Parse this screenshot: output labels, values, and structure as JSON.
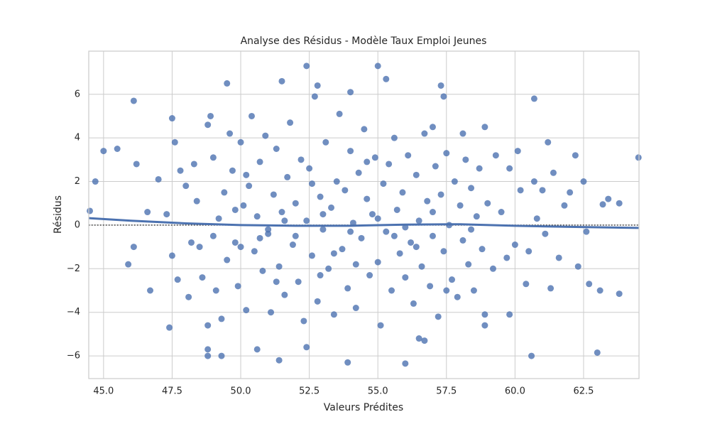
{
  "chart_data": {
    "type": "residplot",
    "title": "Analyse des Résidus - Modèle Taux Emploi Jeunes",
    "xlabel": "Valeurs Prédites",
    "ylabel": "Résidus",
    "xlim": [
      44.46,
      64.52
    ],
    "ylim": [
      -7.04,
      7.98
    ],
    "xticks": [
      {
        "value": 45,
        "label": "45.0"
      },
      {
        "value": 47.5,
        "label": "47.5"
      },
      {
        "value": 50,
        "label": "50.0"
      },
      {
        "value": 52.5,
        "label": "52.5"
      },
      {
        "value": 55,
        "label": "55.0"
      },
      {
        "value": 57.5,
        "label": "57.5"
      },
      {
        "value": 60,
        "label": "60.0"
      },
      {
        "value": 62.5,
        "label": "62.5"
      }
    ],
    "yticks": [
      {
        "value": -6,
        "label": "−6"
      },
      {
        "value": -4,
        "label": "−4"
      },
      {
        "value": -2,
        "label": "−2"
      },
      0,
      2,
      4,
      6
    ],
    "grid": true,
    "hline": 0,
    "series": [
      {
        "type": "scatter",
        "color": "#4c72b0",
        "x": [
          44.5,
          44.7,
          45.0,
          45.5,
          46.1,
          45.9,
          46.1,
          46.2,
          46.6,
          46.7,
          47.0,
          47.4,
          47.5,
          47.6,
          49.5,
          52.4,
          55.0,
          55.3,
          51.5,
          52.8,
          54.0,
          57.3,
          57.4,
          60.7,
          60.6,
          63.0,
          63.2,
          63.4,
          63.8,
          64.5,
          63.8,
          63.1,
          62.7,
          62.5,
          62.2,
          62.6,
          48.8,
          49.3,
          48.8,
          51.4,
          53.9,
          56.0,
          56.5,
          56.7,
          52.4,
          50.6,
          48.8,
          61.2,
          58.9,
          57.0,
          58.1,
          59.8,
          58.9,
          58.9,
          47.3,
          47.5,
          47.7,
          47.8,
          48.0,
          48.1,
          48.3,
          48.4,
          48.5,
          48.6,
          48.8,
          48.9,
          49.0,
          49.1,
          49.2,
          49.3,
          49.4,
          49.5,
          49.6,
          49.7,
          49.8,
          49.9,
          50.0,
          50.1,
          50.2,
          50.3,
          50.4,
          50.5,
          50.6,
          50.7,
          50.8,
          50.9,
          51.0,
          51.1,
          51.2,
          51.3,
          51.4,
          51.5,
          51.6,
          51.7,
          51.8,
          51.9,
          52.0,
          52.1,
          52.2,
          52.3,
          52.4,
          52.5,
          52.6,
          52.7,
          52.8,
          52.9,
          53.0,
          53.1,
          53.2,
          53.3,
          53.4,
          53.5,
          53.6,
          53.7,
          53.8,
          53.9,
          54.0,
          54.1,
          54.2,
          54.3,
          54.4,
          54.5,
          54.6,
          54.7,
          54.8,
          54.9,
          55.0,
          55.1,
          55.2,
          55.3,
          55.4,
          55.5,
          55.6,
          55.7,
          55.8,
          55.9,
          56.0,
          56.1,
          56.2,
          56.3,
          56.4,
          56.5,
          56.6,
          56.7,
          56.8,
          56.9,
          57.0,
          57.1,
          57.2,
          57.3,
          57.4,
          57.5,
          57.6,
          57.7,
          57.8,
          57.9,
          58.0,
          58.1,
          58.2,
          58.3,
          58.4,
          58.5,
          58.6,
          58.7,
          58.8,
          59.0,
          59.2,
          59.3,
          59.5,
          59.7,
          59.8,
          60.0,
          60.1,
          60.2,
          60.4,
          60.5,
          60.7,
          60.8,
          61.0,
          61.1,
          61.3,
          61.4,
          61.6,
          61.8,
          62.0,
          62.3,
          49.0,
          50.0,
          51.0,
          52.0,
          53.0,
          54.0,
          55.0,
          56.0,
          57.0,
          48.2,
          49.8,
          50.7,
          51.6,
          52.6,
          53.4,
          54.6,
          55.6,
          56.4,
          57.5,
          58.4,
          50.2,
          51.3,
          52.9,
          54.2
        ],
        "values": [
          0.65,
          2.0,
          3.4,
          3.5,
          5.7,
          -1.8,
          -1.0,
          2.8,
          0.6,
          -3.0,
          2.1,
          -4.7,
          4.9,
          3.8,
          6.5,
          7.3,
          7.3,
          6.7,
          6.6,
          6.4,
          6.1,
          6.4,
          5.9,
          5.8,
          -6.0,
          -5.85,
          0.95,
          1.2,
          1.0,
          3.1,
          -3.15,
          -3.0,
          -2.7,
          2.0,
          3.2,
          -0.3,
          -6.0,
          -6.0,
          -5.7,
          -6.2,
          -6.3,
          -6.35,
          -5.2,
          -5.3,
          -5.6,
          -5.7,
          -4.6,
          3.8,
          4.5,
          4.5,
          4.2,
          -4.1,
          -4.6,
          -4.1,
          0.5,
          -1.4,
          -2.5,
          2.5,
          1.8,
          -3.3,
          2.8,
          1.1,
          -1.0,
          -2.4,
          4.6,
          5.0,
          3.1,
          -3.0,
          0.3,
          -4.3,
          1.5,
          -1.6,
          4.2,
          2.5,
          -0.8,
          -2.8,
          3.8,
          0.9,
          -3.9,
          1.8,
          5.0,
          -1.2,
          0.4,
          2.9,
          -2.1,
          4.1,
          -0.4,
          -4.0,
          1.4,
          3.5,
          -1.9,
          0.6,
          -3.2,
          2.2,
          4.7,
          -0.9,
          1.0,
          -2.6,
          3.0,
          -4.4,
          0.2,
          2.6,
          -1.4,
          5.9,
          -3.5,
          1.3,
          -0.2,
          3.8,
          -2.0,
          0.8,
          -4.1,
          2.0,
          5.1,
          -1.1,
          1.6,
          -2.9,
          3.4,
          0.1,
          -3.8,
          2.4,
          -0.6,
          4.4,
          1.2,
          -2.3,
          0.5,
          3.1,
          -1.7,
          -4.6,
          1.9,
          -0.3,
          2.8,
          -3.0,
          4.0,
          0.7,
          -1.3,
          1.5,
          -2.4,
          3.2,
          -0.8,
          -3.6,
          2.3,
          0.2,
          -1.9,
          4.2,
          1.1,
          -2.8,
          -0.5,
          2.7,
          -4.2,
          1.4,
          -1.2,
          3.3,
          0.0,
          -2.5,
          2.0,
          -3.3,
          0.9,
          -0.7,
          3.0,
          -1.8,
          1.7,
          -3.0,
          0.4,
          2.6,
          -1.1,
          1.0,
          -2.0,
          3.2,
          0.6,
          -1.5,
          2.6,
          -0.9,
          3.4,
          1.6,
          -2.7,
          -1.2,
          2.0,
          0.3,
          1.6,
          -0.4,
          -2.9,
          2.4,
          -1.5,
          0.9,
          1.5,
          -1.9,
          -0.5,
          -1.0,
          -0.2,
          -0.5,
          0.5,
          -0.3,
          0.3,
          -0.1,
          0.6,
          -0.8,
          0.7,
          -0.6,
          0.2,
          1.9,
          -1.3,
          2.9,
          -0.5,
          -1.0,
          -3.0,
          -0.2,
          2.3,
          -2.6,
          -2.3,
          -1.8
        ]
      },
      {
        "type": "line",
        "color": "#4c72b0",
        "x": [
          44.46,
          46,
          48,
          50,
          52,
          54,
          56,
          58,
          60,
          62,
          64.52
        ],
        "values": [
          0.32,
          0.2,
          0.08,
          0.0,
          -0.03,
          -0.03,
          0.02,
          0.04,
          -0.03,
          -0.08,
          -0.13
        ]
      }
    ]
  }
}
